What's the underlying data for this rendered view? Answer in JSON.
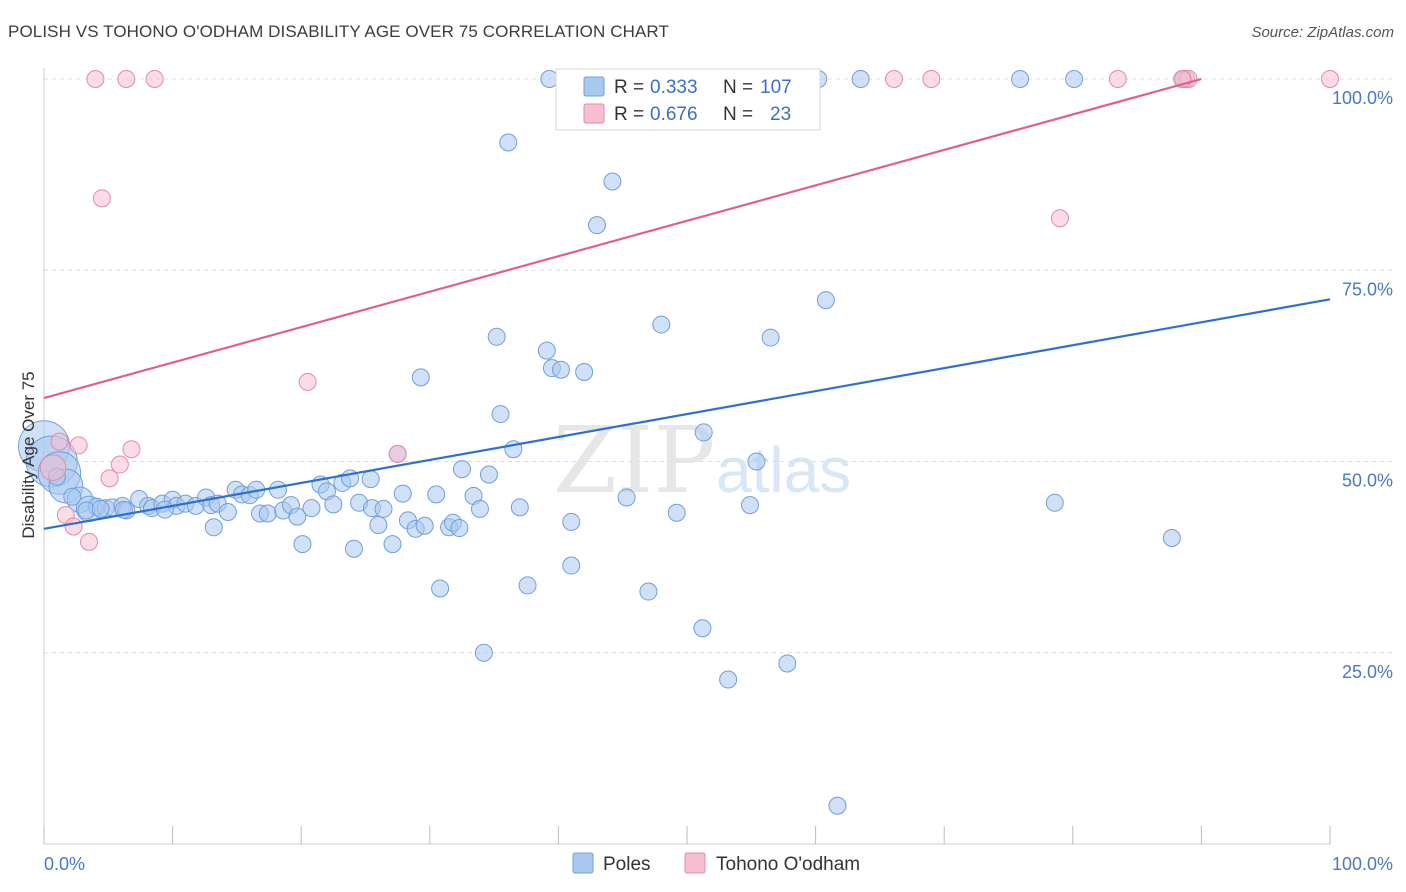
{
  "title": "POLISH VS TOHONO O'ODHAM DISABILITY AGE OVER 75 CORRELATION CHART",
  "source": "Source: ZipAtlas.com",
  "colors": {
    "poles_fill": "#a9c8f0",
    "poles_stroke": "#6f9fdc",
    "poles_line": "#2f6fcf",
    "tohono_fill": "#f7bdd0",
    "tohono_stroke": "#e48aa8",
    "tohono_line": "#e0608a",
    "grid": "#dddddd",
    "tick_text": "#4a78c4"
  },
  "legend_top": {
    "rows": [
      {
        "r_label": "R =",
        "r_value": "0.333",
        "n_label": "N =",
        "n_value": "107"
      },
      {
        "r_label": "R =",
        "r_value": "0.676",
        "n_label": "N =",
        "n_value": "23"
      }
    ]
  },
  "legend_bottom": {
    "items": [
      {
        "label": "Poles"
      },
      {
        "label": "Tohono O'odham"
      }
    ]
  },
  "watermark": {
    "zip": "ZIP",
    "atlas": "atlas"
  },
  "chart_data": {
    "type": "scatter",
    "title": "POLISH VS TOHONO O'ODHAM DISABILITY AGE OVER 75 CORRELATION CHART",
    "xlabel": "",
    "ylabel": "Disability Age Over 75",
    "xlim": [
      0,
      100
    ],
    "ylim": [
      0,
      100
    ],
    "x_tick_labels": [
      "0.0%",
      "100.0%"
    ],
    "y_tick_labels": [
      "25.0%",
      "50.0%",
      "75.0%",
      "100.0%"
    ],
    "y_ticks": [
      25,
      50,
      75,
      100
    ],
    "grid": true,
    "legend_position": "top-center",
    "series": [
      {
        "name": "Poles",
        "R": 0.333,
        "N": 107,
        "trend": [
          [
            0,
            41.2
          ],
          [
            100,
            71.2
          ]
        ],
        "points": [
          [
            0.0,
            52.0,
            3
          ],
          [
            0.6,
            50.0,
            3
          ],
          [
            1.2,
            48.5,
            2.5
          ],
          [
            1.7,
            46.8,
            2
          ],
          [
            2.8,
            45.0,
            1.5
          ],
          [
            3.5,
            43.8,
            1.5
          ],
          [
            4.1,
            44.1,
            1
          ],
          [
            4.8,
            43.9,
            1
          ],
          [
            5.3,
            44.0,
            1
          ],
          [
            6.1,
            44.2,
            1
          ],
          [
            6.4,
            43.6,
            1
          ],
          [
            7.4,
            45.1,
            1
          ],
          [
            8.1,
            44.2,
            1
          ],
          [
            8.4,
            43.9,
            1
          ],
          [
            9.2,
            44.5,
            1
          ],
          [
            10.0,
            45.0,
            1
          ],
          [
            10.3,
            44.2,
            1
          ],
          [
            11.0,
            44.5,
            1
          ],
          [
            11.8,
            44.2,
            1
          ],
          [
            12.6,
            45.3,
            1
          ],
          [
            13.0,
            44.3,
            1
          ],
          [
            13.5,
            44.5,
            1
          ],
          [
            13.2,
            41.4,
            1
          ],
          [
            14.3,
            43.4,
            1
          ],
          [
            14.9,
            46.3,
            1
          ],
          [
            15.4,
            45.7,
            1
          ],
          [
            16.0,
            45.6,
            1
          ],
          [
            16.5,
            46.3,
            1
          ],
          [
            16.8,
            43.2,
            1
          ],
          [
            17.4,
            43.2,
            1
          ],
          [
            18.2,
            46.3,
            1
          ],
          [
            18.6,
            43.6,
            1
          ],
          [
            19.2,
            44.3,
            1
          ],
          [
            19.7,
            42.8,
            1
          ],
          [
            20.1,
            39.2,
            1
          ],
          [
            20.8,
            43.9,
            1
          ],
          [
            21.5,
            47.0,
            1
          ],
          [
            22.0,
            46.1,
            1
          ],
          [
            22.5,
            44.4,
            1
          ],
          [
            23.2,
            47.2,
            1
          ],
          [
            23.8,
            47.8,
            1
          ],
          [
            24.1,
            38.6,
            1
          ],
          [
            24.5,
            44.6,
            1
          ],
          [
            25.4,
            47.7,
            1
          ],
          [
            25.5,
            43.9,
            1
          ],
          [
            26.0,
            41.7,
            1
          ],
          [
            26.4,
            43.8,
            1
          ],
          [
            27.1,
            39.2,
            1
          ],
          [
            27.5,
            51.0,
            1
          ],
          [
            27.9,
            45.8,
            1
          ],
          [
            28.3,
            42.3,
            1
          ],
          [
            28.9,
            41.2,
            1
          ],
          [
            29.3,
            61.0,
            1
          ],
          [
            29.6,
            41.6,
            1
          ],
          [
            30.5,
            45.7,
            1
          ],
          [
            30.8,
            33.4,
            1
          ],
          [
            31.5,
            41.4,
            1
          ],
          [
            31.8,
            42.0,
            1
          ],
          [
            32.3,
            41.3,
            1
          ],
          [
            32.5,
            49.0,
            1
          ],
          [
            33.4,
            45.5,
            1
          ],
          [
            33.9,
            43.8,
            1
          ],
          [
            34.2,
            25.0,
            1
          ],
          [
            34.6,
            48.3,
            1
          ],
          [
            35.2,
            66.3,
            1
          ],
          [
            35.5,
            56.2,
            1
          ],
          [
            36.1,
            91.7,
            1
          ],
          [
            36.5,
            51.6,
            1
          ],
          [
            37.0,
            44.0,
            1
          ],
          [
            37.6,
            33.8,
            1
          ],
          [
            39.1,
            64.5,
            1
          ],
          [
            39.3,
            100.0,
            1
          ],
          [
            39.5,
            62.2,
            1
          ],
          [
            40.2,
            62.0,
            1
          ],
          [
            41.0,
            42.1,
            1
          ],
          [
            41.0,
            36.4,
            1
          ],
          [
            42.0,
            61.7,
            1
          ],
          [
            42.4,
            100.0,
            1
          ],
          [
            43.0,
            80.9,
            1
          ],
          [
            44.2,
            86.6,
            1
          ],
          [
            45.3,
            45.3,
            1
          ],
          [
            47.0,
            33.0,
            1
          ],
          [
            48.0,
            67.9,
            1
          ],
          [
            49.2,
            43.3,
            1
          ],
          [
            51.2,
            28.2,
            1
          ],
          [
            51.3,
            53.8,
            1
          ],
          [
            53.2,
            21.5,
            1
          ],
          [
            53.7,
            100.0,
            1
          ],
          [
            54.9,
            44.3,
            1
          ],
          [
            55.4,
            50.0,
            1
          ],
          [
            56.5,
            66.2,
            1
          ],
          [
            57.8,
            23.6,
            1
          ],
          [
            60.2,
            100.0,
            1
          ],
          [
            60.8,
            71.1,
            1
          ],
          [
            61.7,
            5.0,
            1
          ],
          [
            63.5,
            100.0,
            1
          ],
          [
            75.9,
            100.0,
            1
          ],
          [
            78.6,
            44.6,
            1
          ],
          [
            80.1,
            100.0,
            1
          ],
          [
            87.7,
            40.0,
            1
          ],
          [
            88.6,
            100.0,
            1
          ],
          [
            1.0,
            48.0,
            1
          ],
          [
            2.2,
            45.4,
            1
          ],
          [
            3.3,
            43.6,
            1
          ],
          [
            4.4,
            43.8,
            1
          ],
          [
            6.2,
            43.7,
            1
          ],
          [
            9.4,
            43.7,
            1
          ]
        ]
      },
      {
        "name": "Tohono O'odham",
        "R": 0.676,
        "N": 23,
        "trend": [
          [
            0,
            58.3
          ],
          [
            90,
            100.0
          ]
        ],
        "points": [
          [
            0.7,
            49.2,
            1.5
          ],
          [
            1.2,
            52.6,
            1
          ],
          [
            1.7,
            43.0,
            1
          ],
          [
            2.3,
            41.5,
            1
          ],
          [
            2.7,
            52.1,
            1
          ],
          [
            3.5,
            39.5,
            1
          ],
          [
            4.0,
            100.0,
            1
          ],
          [
            4.5,
            84.4,
            1
          ],
          [
            5.1,
            47.8,
            1
          ],
          [
            5.9,
            49.6,
            1
          ],
          [
            6.4,
            100.0,
            1
          ],
          [
            6.8,
            51.6,
            1
          ],
          [
            8.6,
            100.0,
            1
          ],
          [
            20.5,
            60.4,
            1
          ],
          [
            27.5,
            51.0,
            1
          ],
          [
            66.1,
            100.0,
            1
          ],
          [
            69.0,
            100.0,
            1
          ],
          [
            79.0,
            81.8,
            1
          ],
          [
            83.5,
            100.0,
            1
          ],
          [
            88.8,
            100.0,
            1
          ],
          [
            89.0,
            100.0,
            1
          ],
          [
            100.0,
            100.0,
            1
          ],
          [
            88.5,
            100.0,
            1
          ]
        ]
      }
    ]
  }
}
